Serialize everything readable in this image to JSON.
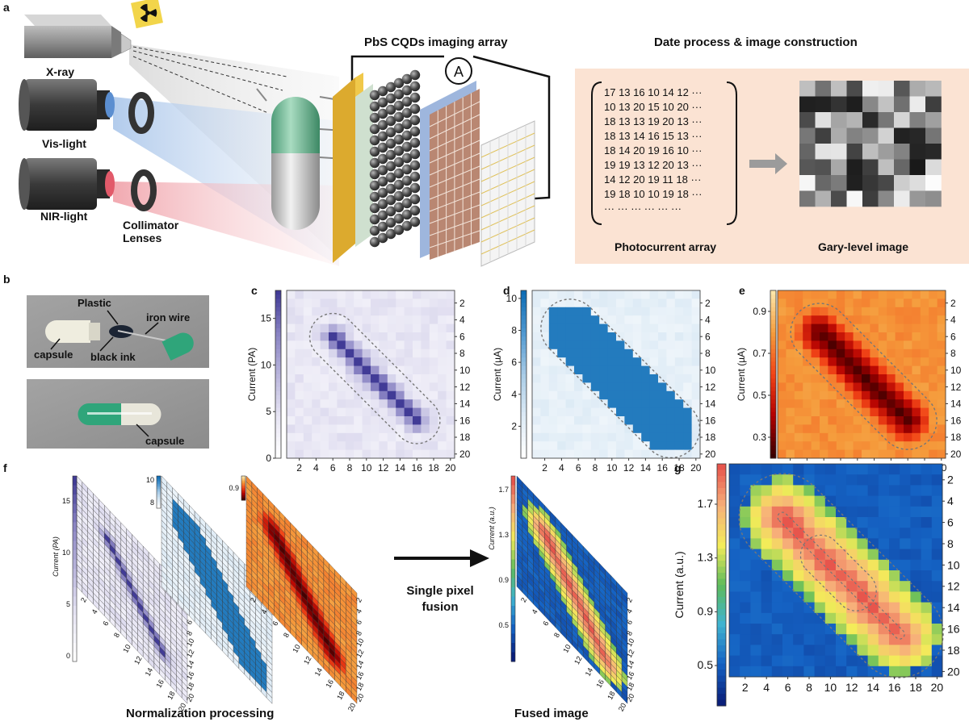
{
  "panel_labels": {
    "a": "a",
    "b": "b",
    "c": "c",
    "d": "d",
    "e": "e",
    "f": "f",
    "g": "g"
  },
  "panel_a": {
    "sources": [
      "X-ray",
      "Vis-light",
      "NIR-light"
    ],
    "collimator_line1": "Collimator",
    "collimator_line2": "Lenses",
    "array_title": "PbS CQDs imaging array",
    "ammeter_symbol": "A",
    "process_title": "Date process & image construction",
    "photocurrent_label": "Photocurrent array",
    "gray_label": "Gary-level image",
    "matrix_rows": [
      "17 13 16 10 14 12 ···",
      "10 13 20 15 10 20 ···",
      "18 13 13 19 20 13 ···",
      "18 13 14 16 15 13 ···",
      "18 14 20 19 16 10 ···",
      "19 19 13 12 20 13 ···",
      "14 12 20 19 11 18 ···",
      "19 18 10 10 19 18 ···",
      "···  ···  ···  ···  ···  ···"
    ]
  },
  "panel_b": {
    "labels": {
      "plastic": "Plastic",
      "iron_wire": "iron wire",
      "capsule": "capsule",
      "black_ink": "black ink",
      "capsule2": "capsule"
    }
  },
  "panel_f": {
    "arrow_label_line1": "Single pixel",
    "arrow_label_line2": "fusion",
    "norm_label": "Normalization processing",
    "fused_label": "Fused image",
    "mini_pa_label": "Current (PA)",
    "mini_au_label": "Current (a.u.)",
    "mini_pa_ticks": [
      "15",
      "10",
      "5",
      "0"
    ],
    "mini_ua_ticks": [
      "10",
      "8"
    ],
    "mini_e_tick": "0.9",
    "mini_au_ticks": [
      "1.7",
      "1.3",
      "0.9",
      "0.5"
    ]
  },
  "chart_data": [
    {
      "id": "c",
      "type": "heatmap",
      "palette": "purple",
      "cmap": [
        "#ffffff",
        "#e6e4f3",
        "#b9b5dc",
        "#8882c2",
        "#413b96"
      ],
      "ylabel": "Current (PA)",
      "cbar_ticks": [
        "15",
        "10",
        "5",
        "0"
      ],
      "cbar_range": [
        0,
        18
      ],
      "x_ticks": [
        "2",
        "4",
        "6",
        "8",
        "10",
        "12",
        "14",
        "16",
        "18",
        "20"
      ],
      "y_ticks": [
        "2",
        "4",
        "6",
        "8",
        "10",
        "12",
        "14",
        "16",
        "18",
        "20"
      ],
      "grid_size": 20,
      "capsule_from": [
        5.5,
        5.5
      ],
      "capsule_to": [
        15.5,
        15.5
      ],
      "capsule_radius": 2.4,
      "mode": "core",
      "base": 0.22,
      "peak": 0.95
    },
    {
      "id": "d",
      "type": "heatmap",
      "palette": "blue",
      "cmap": [
        "#ffffff",
        "#dceaf5",
        "#a8cbe6",
        "#4f98d0",
        "#0e6db5"
      ],
      "ylabel": "Current (µA)",
      "cbar_ticks": [
        "10",
        "8",
        "6",
        "4",
        "2"
      ],
      "cbar_range": [
        0,
        10.5
      ],
      "x_ticks": [
        "2",
        "4",
        "6",
        "8",
        "10",
        "12",
        "14",
        "16",
        "18",
        "20"
      ],
      "y_ticks": [
        "2",
        "4",
        "6",
        "8",
        "10",
        "12",
        "14",
        "16",
        "18",
        "20"
      ],
      "grid_size": 20,
      "capsule_from": [
        4.5,
        4.5
      ],
      "capsule_to": [
        16.5,
        16.5
      ],
      "capsule_radius": 3.0,
      "mode": "block",
      "base": 0.12,
      "peak": 0.92
    },
    {
      "id": "e",
      "type": "heatmap",
      "palette": "orange",
      "cmap": [
        "#3a0000",
        "#b30000",
        "#f24417",
        "#f59c3c",
        "#fde6a8"
      ],
      "ylabel": "Current (µA)",
      "cbar_ticks": [
        "0.9",
        "0.7",
        "0.5",
        "0.3"
      ],
      "cbar_range": [
        0.2,
        1.0
      ],
      "x_ticks": [
        "2",
        "4",
        "6",
        "8",
        "10",
        "12",
        "14",
        "16",
        "18",
        "20"
      ],
      "y_ticks": [
        "2",
        "4",
        "6",
        "8",
        "10",
        "12",
        "14",
        "16",
        "18",
        "20"
      ],
      "grid_size": 20,
      "capsule_from": [
        5.0,
        5.0
      ],
      "capsule_to": [
        15.5,
        15.5
      ],
      "capsule_radius": 3.0,
      "mode": "inverse",
      "base": 0.72,
      "peak": 0.05
    },
    {
      "id": "g",
      "type": "heatmap",
      "palette": "jet",
      "cmap": [
        "#0a1f7a",
        "#1563c4",
        "#3fb3d0",
        "#5dbb5a",
        "#f3ec59",
        "#f7b07a",
        "#e7554c"
      ],
      "ylabel": "Current (a.u.)",
      "cbar_ticks": [
        "1.7",
        "1.3",
        "0.9",
        "0.5"
      ],
      "cbar_range": [
        0.2,
        2.0
      ],
      "x_ticks": [
        "2",
        "4",
        "6",
        "8",
        "10",
        "12",
        "14",
        "16",
        "18",
        "20"
      ],
      "y_ticks": [
        "2",
        "4",
        "6",
        "8",
        "10",
        "12",
        "14",
        "16",
        "18",
        "20"
      ],
      "grid_size": 20,
      "capsule_from": [
        5.0,
        5.0
      ],
      "capsule_to": [
        16.0,
        16.0
      ],
      "capsule_radius": 3.6,
      "mode": "fused",
      "base": 0.12,
      "peak": 1.0
    }
  ]
}
